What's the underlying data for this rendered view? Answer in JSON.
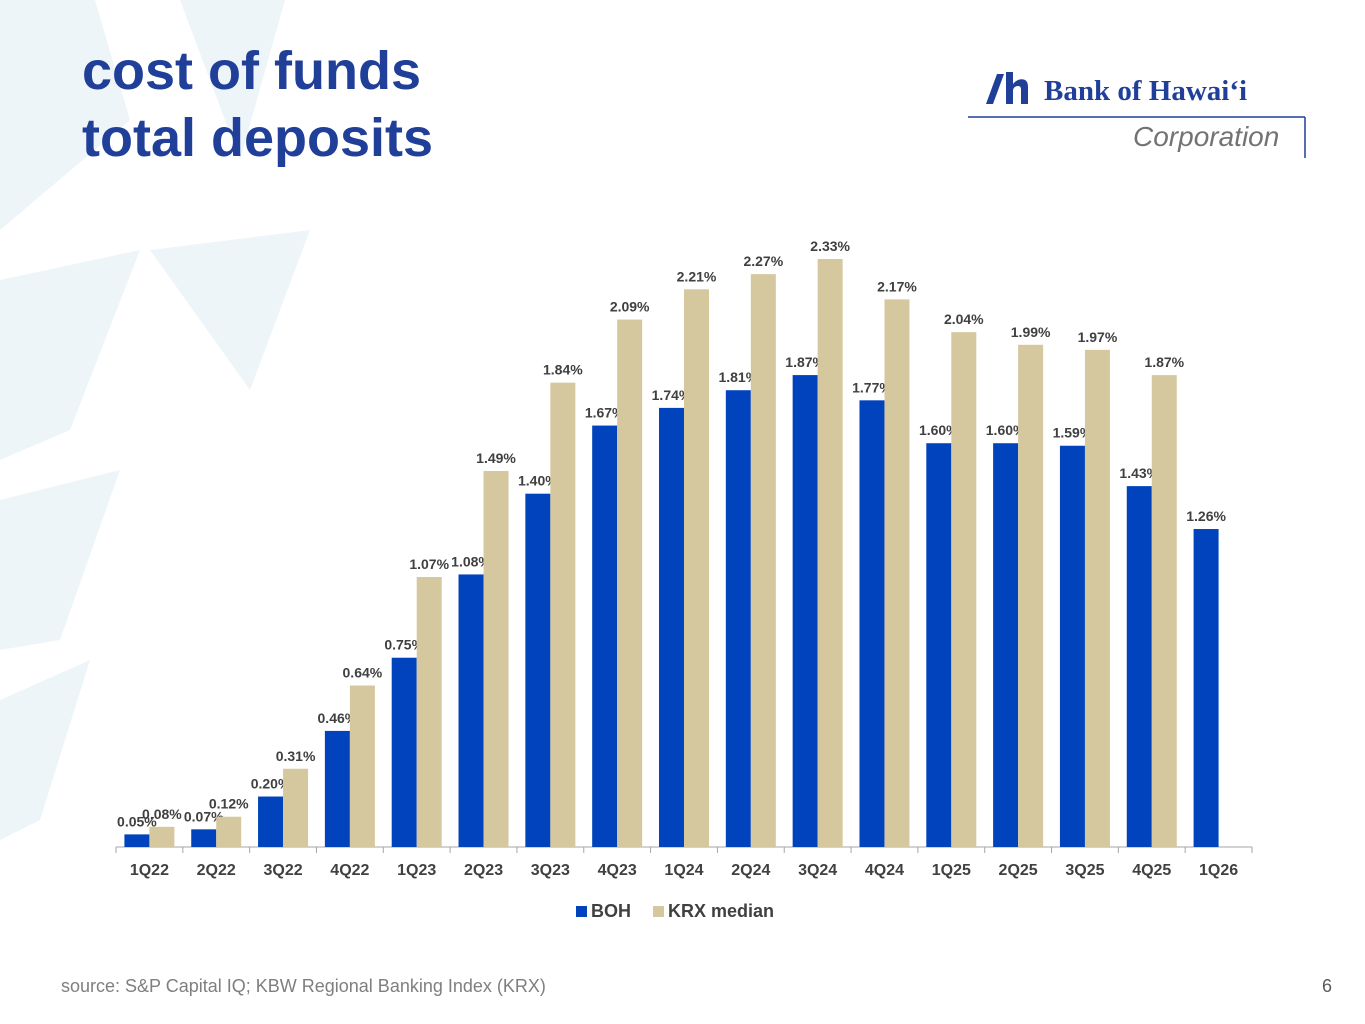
{
  "slide": {
    "title_line1": "cost of funds",
    "title_line2": "total deposits",
    "source": "source: S&P Capital IQ; KBW Regional Banking Index (KRX)",
    "page_number": "6"
  },
  "logo": {
    "name": "Bank of Hawaiʻi",
    "subtitle": "Corporation",
    "color": "#1f3f99"
  },
  "chart_data": {
    "type": "bar",
    "categories": [
      "1Q22",
      "2Q22",
      "3Q22",
      "4Q22",
      "1Q23",
      "2Q23",
      "3Q23",
      "4Q23",
      "1Q24",
      "2Q24",
      "3Q24",
      "4Q24",
      "1Q25",
      "2Q25",
      "3Q25",
      "4Q25",
      "1Q26"
    ],
    "series": [
      {
        "name": "BOH",
        "color": "#0043bc",
        "values": [
          0.05,
          0.07,
          0.2,
          0.46,
          0.75,
          1.08,
          1.4,
          1.67,
          1.74,
          1.81,
          1.87,
          1.77,
          1.6,
          1.6,
          1.59,
          1.43,
          1.26
        ],
        "labels": [
          "0.05%",
          "0.07%",
          "0.20%",
          "0.46%",
          "0.75%",
          "1.08%",
          "1.40%",
          "1.67%",
          "1.74%",
          "1.81%",
          "1.87%",
          "1.77%",
          "1.60%",
          "1.60%",
          "1.59%",
          "1.43%",
          "1.26%"
        ]
      },
      {
        "name": "KRX median",
        "color": "#d5c89f",
        "values": [
          0.08,
          0.12,
          0.31,
          0.64,
          1.07,
          1.49,
          1.84,
          2.09,
          2.21,
          2.27,
          2.33,
          2.17,
          2.04,
          1.99,
          1.97,
          1.87,
          null
        ],
        "labels": [
          "0.08%",
          "0.12%",
          "0.31%",
          "0.64%",
          "1.07%",
          "1.49%",
          "1.84%",
          "2.09%",
          "2.21%",
          "2.27%",
          "2.33%",
          "2.17%",
          "2.04%",
          "1.99%",
          "1.97%",
          "1.87%",
          ""
        ]
      }
    ],
    "title": "",
    "xlabel": "",
    "ylabel": "",
    "ylim": [
      0,
      2.33
    ],
    "grid": false,
    "legend_position": "bottom-center"
  }
}
